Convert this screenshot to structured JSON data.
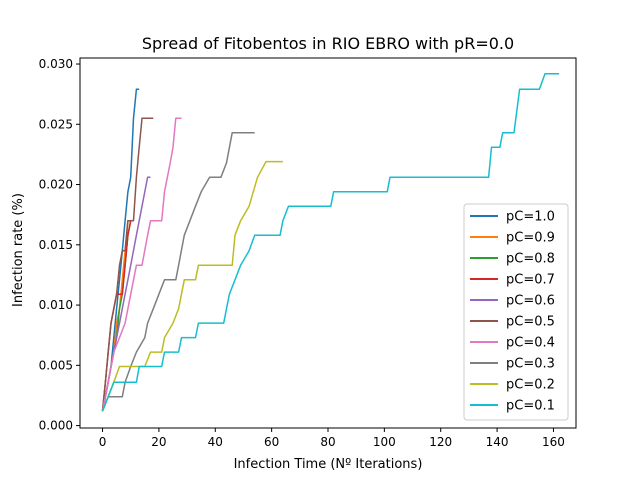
{
  "chart_data": {
    "type": "line",
    "title": "Spread of Fitobentos in RIO EBRO with pR=0.0",
    "xlabel": "Infection Time (Nº Iterations)",
    "ylabel": "Infection rate (%)",
    "xlim": [
      -8,
      168
    ],
    "ylim": [
      -0.0002,
      0.0305
    ],
    "x_ticks": [
      0,
      20,
      40,
      60,
      80,
      100,
      120,
      140,
      160
    ],
    "y_ticks": [
      0.0,
      0.005,
      0.01,
      0.015,
      0.02,
      0.025,
      0.03
    ],
    "y_tick_labels": [
      "0.000",
      "0.005",
      "0.010",
      "0.015",
      "0.020",
      "0.025",
      "0.030"
    ],
    "grid": false,
    "legend_position": "lower right",
    "series": [
      {
        "name": "pC=1.0",
        "color": "#1f77b4",
        "points": [
          [
            0,
            0.0012
          ],
          [
            1,
            0.0024
          ],
          [
            2,
            0.0036
          ],
          [
            3,
            0.0049
          ],
          [
            4,
            0.0073
          ],
          [
            5,
            0.0097
          ],
          [
            6,
            0.0121
          ],
          [
            7,
            0.0145
          ],
          [
            8,
            0.017
          ],
          [
            9,
            0.0194
          ],
          [
            10,
            0.0206
          ],
          [
            11,
            0.0255
          ],
          [
            12,
            0.0279
          ],
          [
            13,
            0.0279
          ]
        ]
      },
      {
        "name": "pC=0.9",
        "color": "#ff7f0e",
        "points": [
          [
            0,
            0.0012
          ],
          [
            1,
            0.0024
          ],
          [
            2,
            0.0036
          ],
          [
            3,
            0.0049
          ],
          [
            4,
            0.0061
          ],
          [
            5,
            0.0085
          ],
          [
            6,
            0.0097
          ],
          [
            7,
            0.0121
          ],
          [
            8,
            0.0145
          ],
          [
            9,
            0.017
          ],
          [
            10,
            0.017
          ]
        ]
      },
      {
        "name": "pC=0.8",
        "color": "#2ca02c",
        "points": [
          [
            0,
            0.0012
          ],
          [
            1,
            0.0024
          ],
          [
            2,
            0.0036
          ],
          [
            3,
            0.0049
          ],
          [
            4,
            0.0061
          ],
          [
            5,
            0.0073
          ],
          [
            6,
            0.0097
          ],
          [
            7,
            0.0109
          ],
          [
            8,
            0.0133
          ],
          [
            9,
            0.0158
          ],
          [
            10,
            0.017
          ]
        ]
      },
      {
        "name": "pC=0.7",
        "color": "#d62728",
        "points": [
          [
            0,
            0.0012
          ],
          [
            1,
            0.0036
          ],
          [
            2,
            0.0061
          ],
          [
            3,
            0.0085
          ],
          [
            5,
            0.0109
          ],
          [
            7,
            0.0109
          ],
          [
            8,
            0.0133
          ],
          [
            9,
            0.0158
          ],
          [
            10,
            0.017
          ],
          [
            11,
            0.017
          ]
        ]
      },
      {
        "name": "pC=0.6",
        "color": "#9467bd",
        "points": [
          [
            0,
            0.0012
          ],
          [
            2,
            0.0036
          ],
          [
            4,
            0.0061
          ],
          [
            6,
            0.0085
          ],
          [
            8,
            0.0109
          ],
          [
            10,
            0.0133
          ],
          [
            12,
            0.0158
          ],
          [
            14,
            0.0182
          ],
          [
            16,
            0.0206
          ],
          [
            17,
            0.0206
          ]
        ]
      },
      {
        "name": "pC=0.5",
        "color": "#8c564b",
        "points": [
          [
            0,
            0.0012
          ],
          [
            1,
            0.0036
          ],
          [
            2,
            0.0061
          ],
          [
            3,
            0.0085
          ],
          [
            4,
            0.0097
          ],
          [
            5,
            0.0109
          ],
          [
            6,
            0.0133
          ],
          [
            7,
            0.0145
          ],
          [
            8,
            0.0145
          ],
          [
            9,
            0.017
          ],
          [
            11,
            0.017
          ],
          [
            12,
            0.0206
          ],
          [
            13,
            0.0231
          ],
          [
            14,
            0.0255
          ],
          [
            18,
            0.0255
          ]
        ]
      },
      {
        "name": "pC=0.4",
        "color": "#e377c2",
        "points": [
          [
            0,
            0.0012
          ],
          [
            2,
            0.0036
          ],
          [
            4,
            0.0061
          ],
          [
            6,
            0.0073
          ],
          [
            8,
            0.0085
          ],
          [
            10,
            0.0109
          ],
          [
            12,
            0.0133
          ],
          [
            14,
            0.0133
          ],
          [
            16,
            0.0158
          ],
          [
            17,
            0.017
          ],
          [
            21,
            0.017
          ],
          [
            22,
            0.0194
          ],
          [
            24,
            0.0218
          ],
          [
            25,
            0.0231
          ],
          [
            26,
            0.0255
          ],
          [
            28,
            0.0255
          ]
        ]
      },
      {
        "name": "pC=0.3",
        "color": "#7f7f7f",
        "points": [
          [
            0,
            0.0012
          ],
          [
            2,
            0.0024
          ],
          [
            7,
            0.0024
          ],
          [
            8,
            0.0036
          ],
          [
            10,
            0.0049
          ],
          [
            12,
            0.0061
          ],
          [
            15,
            0.0073
          ],
          [
            16,
            0.0085
          ],
          [
            18,
            0.0097
          ],
          [
            20,
            0.0109
          ],
          [
            22,
            0.0121
          ],
          [
            26,
            0.0121
          ],
          [
            27,
            0.0133
          ],
          [
            29,
            0.0158
          ],
          [
            31,
            0.017
          ],
          [
            33,
            0.0182
          ],
          [
            35,
            0.0194
          ],
          [
            38,
            0.0206
          ],
          [
            42,
            0.0206
          ],
          [
            44,
            0.0218
          ],
          [
            46,
            0.0243
          ],
          [
            54,
            0.0243
          ]
        ]
      },
      {
        "name": "pC=0.2",
        "color": "#bcbd22",
        "points": [
          [
            0,
            0.0012
          ],
          [
            2,
            0.0024
          ],
          [
            4,
            0.0036
          ],
          [
            6,
            0.0049
          ],
          [
            15,
            0.0049
          ],
          [
            17,
            0.0061
          ],
          [
            21,
            0.0061
          ],
          [
            22,
            0.0073
          ],
          [
            25,
            0.0085
          ],
          [
            27,
            0.0097
          ],
          [
            29,
            0.0121
          ],
          [
            33,
            0.0121
          ],
          [
            34,
            0.0133
          ],
          [
            46,
            0.0133
          ],
          [
            47,
            0.0158
          ],
          [
            49,
            0.017
          ],
          [
            52,
            0.0182
          ],
          [
            55,
            0.0206
          ],
          [
            58,
            0.0219
          ],
          [
            64,
            0.0219
          ]
        ]
      },
      {
        "name": "pC=0.1",
        "color": "#17becf",
        "points": [
          [
            0,
            0.0012
          ],
          [
            2,
            0.0024
          ],
          [
            4,
            0.0036
          ],
          [
            12,
            0.0036
          ],
          [
            13,
            0.0049
          ],
          [
            21,
            0.0049
          ],
          [
            22,
            0.0061
          ],
          [
            27,
            0.0061
          ],
          [
            28,
            0.0073
          ],
          [
            33,
            0.0073
          ],
          [
            34,
            0.0085
          ],
          [
            43,
            0.0085
          ],
          [
            44,
            0.0097
          ],
          [
            45,
            0.0109
          ],
          [
            47,
            0.0121
          ],
          [
            49,
            0.0133
          ],
          [
            52,
            0.0145
          ],
          [
            54,
            0.0158
          ],
          [
            63,
            0.0158
          ],
          [
            64,
            0.017
          ],
          [
            66,
            0.0182
          ],
          [
            81,
            0.0182
          ],
          [
            82,
            0.0194
          ],
          [
            101,
            0.0194
          ],
          [
            102,
            0.0206
          ],
          [
            137,
            0.0206
          ],
          [
            138,
            0.0231
          ],
          [
            141,
            0.0231
          ],
          [
            142,
            0.0243
          ],
          [
            146,
            0.0243
          ],
          [
            148,
            0.0279
          ],
          [
            155,
            0.0279
          ],
          [
            157,
            0.0292
          ],
          [
            162,
            0.0292
          ]
        ]
      }
    ]
  }
}
